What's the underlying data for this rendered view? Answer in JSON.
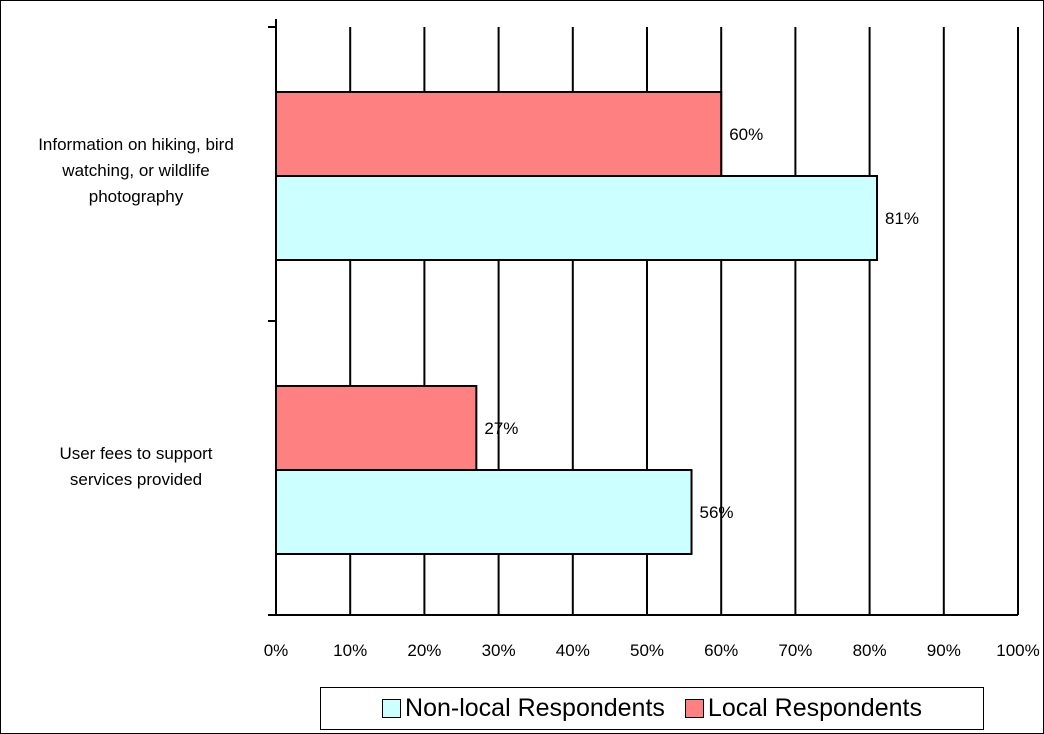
{
  "chart_data": {
    "type": "bar",
    "orientation": "horizontal",
    "title": "",
    "xlabel": "",
    "ylabel": "",
    "categories": [
      "Information on hiking, bird watching, or wildlife photography",
      "User fees to support services provided"
    ],
    "category_label_lines": [
      [
        "Information on hiking, bird",
        "watching, or wildlife",
        "photography"
      ],
      [
        "User fees to support",
        "services provided"
      ]
    ],
    "series": [
      {
        "name": "Non-local Respondents",
        "values": [
          81,
          56
        ],
        "labels": [
          "81%",
          "56%"
        ],
        "color": "#CCFFFF"
      },
      {
        "name": "Local Respondents",
        "values": [
          60,
          27
        ],
        "labels": [
          "60%",
          "27%"
        ],
        "color": "#FF8080"
      }
    ],
    "xlim": [
      0,
      100
    ],
    "xticks": [
      0,
      10,
      20,
      30,
      40,
      50,
      60,
      70,
      80,
      90,
      100
    ],
    "xtick_labels": [
      "0%",
      "10%",
      "20%",
      "30%",
      "40%",
      "50%",
      "60%",
      "70%",
      "80%",
      "90%",
      "100%"
    ],
    "grid": true,
    "legend_position": "bottom",
    "legend": [
      "Non-local Respondents",
      "Local Respondents"
    ]
  }
}
